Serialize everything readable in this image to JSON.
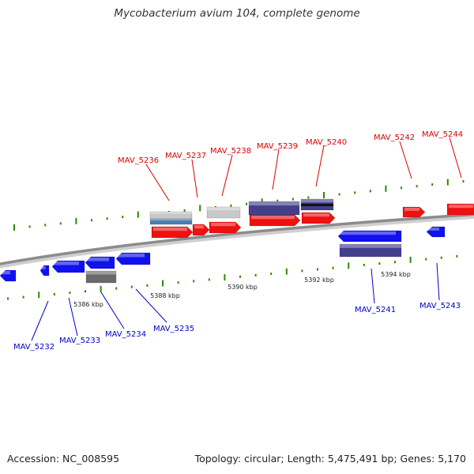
{
  "title": "Mycobacterium avium 104, complete genome",
  "footer": {
    "accession": "Accession: NC_008595",
    "summary": "Topology: circular; Length: 5,475,491 bp; Genes: 5,170"
  },
  "colors": {
    "forward_label": "#dd0000",
    "reverse_label": "#0000cc",
    "backbone": "#8c8c8c",
    "tick": "#2a8a00",
    "red": "#ee1111",
    "blue": "#1111ee",
    "purple": "#443f8c",
    "grey_light": "#c8c8c8",
    "grey_dark": "#6a6a6a",
    "steel": "#4a7fb0"
  },
  "scale_labels": [
    "5386 kbp",
    "5388 kbp",
    "5390 kbp",
    "5392 kbp",
    "5394 kbp"
  ],
  "forward_genes": [
    "MAV_5236",
    "MAV_5237",
    "MAV_5238",
    "MAV_5239",
    "MAV_5240",
    "MAV_5242",
    "MAV_5244"
  ],
  "reverse_genes": [
    "MAV_5232",
    "MAV_5233",
    "MAV_5234",
    "MAV_5235",
    "MAV_5241",
    "MAV_5243"
  ]
}
